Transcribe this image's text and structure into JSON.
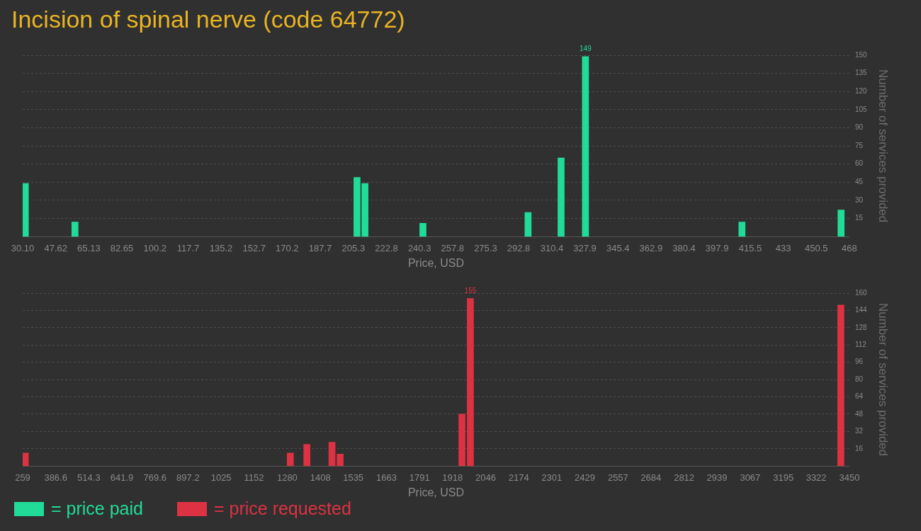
{
  "chart_data": [
    {
      "type": "bar",
      "title": "Incision of spinal nerve (code 64772)",
      "xlabel": "Price, USD",
      "ylabel": "Number of services provided",
      "x": [
        31.5,
        57.8,
        207.2,
        211.4,
        242.1,
        297.8,
        315.3,
        328.2,
        411.1,
        463.6
      ],
      "series": [
        {
          "name": "= price paid",
          "color": "#20dc98",
          "values": [
            44,
            12,
            49,
            44,
            11,
            20,
            65,
            149,
            12,
            22
          ],
          "value_labels": [
            null,
            null,
            null,
            null,
            null,
            null,
            null,
            "149",
            null,
            null
          ]
        }
      ],
      "xlim": [
        30.1,
        468
      ],
      "xticks": [
        {
          "value": 30.1,
          "label": "30.10"
        },
        47.62,
        65.13,
        82.65,
        100.2,
        117.7,
        135.2,
        152.7,
        170.2,
        187.7,
        205.3,
        222.8,
        240.3,
        257.8,
        275.3,
        292.8,
        310.4,
        327.9,
        345.4,
        362.9,
        380.4,
        397.9,
        415.5,
        433,
        450.5,
        468
      ],
      "ylim": [
        0,
        150
      ],
      "yticks": [
        15,
        30,
        45,
        60,
        75,
        90,
        105,
        120,
        135,
        150
      ],
      "grid": "y",
      "legend": "bottom"
    },
    {
      "type": "bar",
      "xlabel": "Price, USD",
      "ylabel": "Number of services provided",
      "x": [
        268.9,
        1292,
        1356,
        1452.9,
        1484.3,
        1954.6,
        1987,
        3417
      ],
      "series": [
        {
          "name": "= price requested",
          "color": "#dc3242",
          "values": [
            12,
            12,
            20,
            22,
            11,
            48,
            155,
            149
          ],
          "value_labels": [
            null,
            null,
            null,
            null,
            null,
            null,
            "155",
            null
          ]
        }
      ],
      "xlim": [
        259,
        3450
      ],
      "xticks": [
        259,
        386.6,
        514.3,
        641.9,
        769.6,
        897.2,
        1025,
        1152,
        1280,
        1408,
        1535,
        1663,
        1791,
        1918,
        2046,
        2174,
        2301,
        2429,
        2557,
        2684,
        2812,
        2939,
        3067,
        3195,
        3322,
        3450
      ],
      "ylim": [
        0,
        160
      ],
      "yticks": [
        16,
        32,
        48,
        64,
        80,
        96,
        112,
        128,
        144,
        160
      ],
      "grid": "y",
      "legend": "bottom"
    }
  ]
}
